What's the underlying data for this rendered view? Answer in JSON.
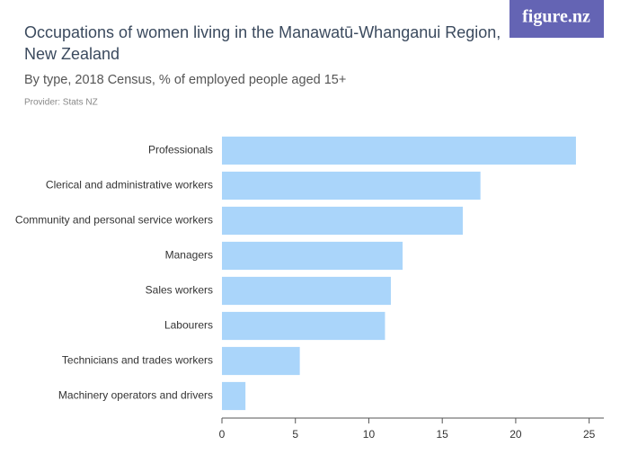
{
  "chart_data": {
    "type": "bar",
    "orientation": "horizontal",
    "title": "Occupations of women living in the Manawatū-Whanganui Region, New Zealand",
    "subtitle": "By type, 2018 Census, % of employed people aged 15+",
    "provider": "Provider: Stats NZ",
    "logo": "figure.nz",
    "categories": [
      "Professionals",
      "Clerical and administrative workers",
      "Community and personal service workers",
      "Managers",
      "Sales workers",
      "Labourers",
      "Technicians and trades workers",
      "Machinery operators and drivers"
    ],
    "values": [
      24.1,
      17.6,
      16.4,
      12.3,
      11.5,
      11.1,
      5.3,
      1.6
    ],
    "color": "#aad5fa",
    "xlim": [
      0,
      26
    ],
    "xticks": [
      0,
      5,
      10,
      15,
      20,
      25
    ]
  }
}
